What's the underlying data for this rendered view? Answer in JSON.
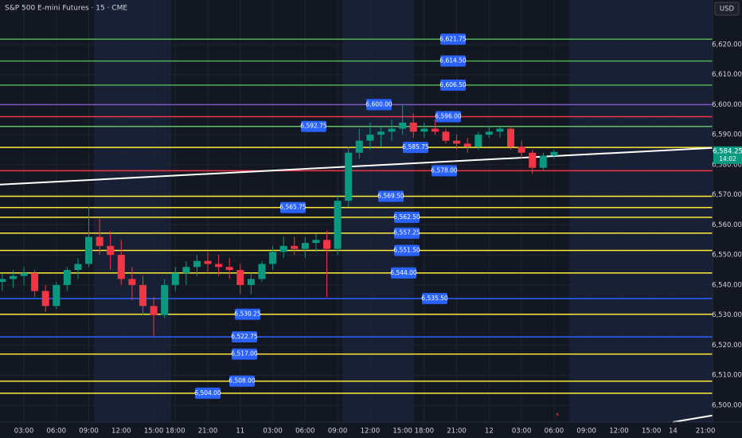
{
  "chart_data": {
    "type": "candlestick",
    "title": "S&P 500 E-mini Futures · 15 · CME",
    "currency": "USD",
    "xlim": [
      -8.83,
      254.6
    ],
    "ylim": [
      6494.4,
      6634.8
    ],
    "grid": true,
    "up_color": "#089981",
    "down_color": "#f23645",
    "xticks": [
      {
        "value": 0,
        "label": "03:00"
      },
      {
        "value": 12,
        "label": "06:00"
      },
      {
        "value": 24,
        "label": "09:00"
      },
      {
        "value": 36,
        "label": "12:00"
      },
      {
        "value": 48,
        "label": "15:00"
      },
      {
        "value": 56,
        "label": "18:00"
      },
      {
        "value": 68,
        "label": "21:00"
      },
      {
        "value": 80,
        "label": "11"
      },
      {
        "value": 92,
        "label": "03:00"
      },
      {
        "value": 104,
        "label": "06:00"
      },
      {
        "value": 116,
        "label": "09:00"
      },
      {
        "value": 128,
        "label": "12:00"
      },
      {
        "value": 140,
        "label": "15:00"
      },
      {
        "value": 148,
        "label": "18:00"
      },
      {
        "value": 160,
        "label": "21:00"
      },
      {
        "value": 172,
        "label": "12"
      },
      {
        "value": 184,
        "label": "03:00"
      },
      {
        "value": 196,
        "label": "06:00"
      },
      {
        "value": 208,
        "label": "09:00"
      },
      {
        "value": 220,
        "label": "12:00"
      },
      {
        "value": 232,
        "label": "15:00"
      },
      {
        "value": 240,
        "label": "14"
      },
      {
        "value": 252,
        "label": "21:00"
      }
    ],
    "yticks": [
      {
        "value": 6500,
        "label": "6,500.00"
      },
      {
        "value": 6510,
        "label": "6,510.00"
      },
      {
        "value": 6520,
        "label": "6,520.00"
      },
      {
        "value": 6530,
        "label": "6,530.00"
      },
      {
        "value": 6540,
        "label": "6,540.00"
      },
      {
        "value": 6550,
        "label": "6,550.00"
      },
      {
        "value": 6560,
        "label": "6,560.00"
      },
      {
        "value": 6570,
        "label": "6,570.00"
      },
      {
        "value": 6580,
        "label": "6,580.00"
      },
      {
        "value": 6590,
        "label": "6,590.00"
      },
      {
        "value": 6600,
        "label": "6,600.00"
      },
      {
        "value": 6610,
        "label": "6,610.00"
      },
      {
        "value": 6620,
        "label": "6,620.00"
      }
    ],
    "x": [
      -8,
      -4,
      0,
      4,
      8,
      12,
      16,
      20,
      24,
      28,
      32,
      36,
      40,
      44,
      48,
      52,
      56,
      60,
      64,
      68,
      72,
      76,
      80,
      84,
      88,
      92,
      96,
      100,
      104,
      108,
      112,
      116,
      120,
      124,
      128,
      132,
      136,
      140,
      144,
      148,
      152,
      156,
      160,
      164,
      168,
      172,
      176,
      180,
      184,
      188,
      192,
      196
    ],
    "open": [
      6541,
      6542,
      6543,
      6544,
      6538,
      6533,
      6540,
      6545,
      6547,
      6556,
      6553,
      6550,
      6542,
      6540,
      6533,
      6530,
      6540,
      6544,
      6546,
      6548,
      6547,
      6546,
      6545,
      6540,
      6542,
      6547,
      6551,
      6553,
      6552,
      6554,
      6555,
      6552,
      6568,
      6584,
      6588,
      6590,
      6591,
      6592,
      6594,
      6591,
      6592,
      6591,
      6588,
      6587,
      6586,
      6590,
      6591,
      6592,
      6586,
      6584,
      6579,
      6583
    ],
    "high": [
      6544,
      6545,
      6546,
      6545,
      6540,
      6541,
      6546,
      6549,
      6566,
      6562,
      6558,
      6555,
      6546,
      6543,
      6536,
      6542,
      6546,
      6548,
      6550,
      6551,
      6550,
      6549,
      6547,
      6544,
      6548,
      6553,
      6556,
      6556,
      6556,
      6557,
      6558,
      6570,
      6586,
      6592,
      6594,
      6593,
      6595,
      6600,
      6597,
      6594,
      6595,
      6592,
      6590,
      6589,
      6591,
      6593,
      6593,
      6593,
      6588,
      6585,
      6584,
      6585
    ],
    "low": [
      6538,
      6539,
      6540,
      6536,
      6531,
      6532,
      6538,
      6542,
      6546,
      6550,
      6545,
      6540,
      6535,
      6530,
      6523,
      6529,
      6538,
      6540,
      6543,
      6544,
      6543,
      6542,
      6537,
      6537,
      6541,
      6545,
      6549,
      6550,
      6549,
      6551,
      6536,
      6550,
      6566,
      6582,
      6585,
      6586,
      6588,
      6590,
      6589,
      6589,
      6590,
      6587,
      6585,
      6584,
      6585,
      6589,
      6589,
      6585,
      6582,
      6577,
      6578,
      6582
    ],
    "close": [
      6542,
      6543,
      6544,
      6538,
      6533,
      6540,
      6545,
      6547,
      6556,
      6553,
      6550,
      6542,
      6540,
      6533,
      6530,
      6540,
      6544,
      6546,
      6548,
      6547,
      6546,
      6545,
      6540,
      6542,
      6547,
      6551,
      6553,
      6552,
      6554,
      6555,
      6552,
      6568,
      6584,
      6588,
      6590,
      6591,
      6592,
      6594,
      6591,
      6592,
      6591,
      6588,
      6587,
      6586,
      6590,
      6591,
      6592,
      6586,
      6584,
      6579,
      6583,
      6584.25
    ],
    "last_price": 6584.25,
    "last_price_label": "6,584.25",
    "countdown": "14:02",
    "levels": [
      {
        "value": 6621.75,
        "label": "6,621.75",
        "color": "#4caf50"
      },
      {
        "value": 6614.5,
        "label": "6,614.50",
        "color": "#4caf50"
      },
      {
        "value": 6606.5,
        "label": "6,606.50",
        "color": "#4caf50"
      },
      {
        "value": 6600,
        "label": "6,600.00",
        "color": "#7e57c2"
      },
      {
        "value": 6596,
        "label": "6,596.00",
        "color": "#f23645"
      },
      {
        "value": 6592.75,
        "label": "6,592.75",
        "color": "#66bb6a"
      },
      {
        "value": 6585.75,
        "label": "6,585.75",
        "color": "#ffeb3b"
      },
      {
        "value": 6578,
        "label": "6,578.00",
        "color": "#f23645"
      },
      {
        "value": 6569.5,
        "label": "6,569.50",
        "color": "#ffeb3b"
      },
      {
        "value": 6565.75,
        "label": "6,565.75",
        "color": "#ffeb3b"
      },
      {
        "value": 6562.5,
        "label": "6,562.50",
        "color": "#ffeb3b"
      },
      {
        "value": 6557.25,
        "label": "6,557.25",
        "color": "#ffeb3b"
      },
      {
        "value": 6551.5,
        "label": "6,551.50",
        "color": "#ffeb3b"
      },
      {
        "value": 6544,
        "label": "6,544.00",
        "color": "#ffeb3b"
      },
      {
        "value": 6535.5,
        "label": "6,535.50",
        "color": "#2962ff"
      },
      {
        "value": 6530.25,
        "label": "6,530.25",
        "color": "#ffeb3b"
      },
      {
        "value": 6522.75,
        "label": "6,522.75",
        "color": "#2962ff"
      },
      {
        "value": 6517,
        "label": "6,517.00",
        "color": "#ffeb3b"
      },
      {
        "value": 6508,
        "label": "6,508.00",
        "color": "#ffeb3b"
      },
      {
        "value": 6504,
        "label": "6,504.00",
        "color": "#ffeb3b"
      }
    ],
    "trendlines": [
      {
        "x": [
          -8.83,
          254.6
        ],
        "y": [
          6573.4,
          6585.6
        ],
        "color": "#ffffff"
      },
      {
        "x": [
          240,
          254.6
        ],
        "y": [
          6494.4,
          6496.6
        ],
        "color": "#ffffff"
      }
    ]
  }
}
